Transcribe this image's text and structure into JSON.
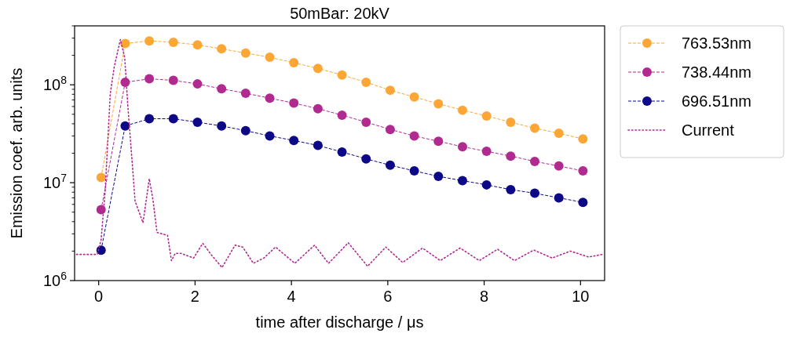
{
  "chart_data": {
    "type": "line",
    "title": "50mBar: 20kV",
    "xlabel": "time after discharge / μs",
    "ylabel": "Emission coef. arb. units",
    "log": "y",
    "xlim": [
      -0.5,
      10.5
    ],
    "xticks": [
      0,
      2,
      4,
      6,
      8,
      10
    ],
    "ylim": [
      1000000,
      400000000
    ],
    "yticks": [
      {
        "value": 1000000,
        "label": "10$^{6}$"
      },
      {
        "value": 2000000,
        "label": null
      },
      {
        "value": 3000000,
        "label": null
      },
      {
        "value": 4000000,
        "label": null
      },
      {
        "value": 5000000,
        "label": null
      },
      {
        "value": 6000000,
        "label": null
      },
      {
        "value": 7000000,
        "label": null
      },
      {
        "value": 8000000,
        "label": null
      },
      {
        "value": 9000000,
        "label": null
      },
      {
        "value": 10000000,
        "label": "10$^{7}$"
      },
      {
        "value": 20000000,
        "label": null
      },
      {
        "value": 30000000,
        "label": null
      },
      {
        "value": 40000000,
        "label": null
      },
      {
        "value": 50000000,
        "label": null
      },
      {
        "value": 60000000,
        "label": null
      },
      {
        "value": 70000000,
        "label": null
      },
      {
        "value": 80000000,
        "label": null
      },
      {
        "value": 90000000,
        "label": null
      },
      {
        "value": 100000000,
        "label": "10$^{8}$"
      },
      {
        "value": 200000000,
        "label": null
      },
      {
        "value": 300000000,
        "label": null
      },
      {
        "value": 400000000,
        "label": null
      }
    ],
    "grid": false,
    "legend": "top right",
    "marker": "circle",
    "line_style": "dashed",
    "x": [
      0.05,
      0.55,
      1.05,
      1.55,
      2.05,
      2.55,
      3.05,
      3.55,
      4.05,
      4.55,
      5.05,
      5.55,
      6.05,
      6.55,
      7.05,
      7.55,
      8.05,
      8.55,
      9.05,
      9.55,
      10.05
    ],
    "series": [
      {
        "name": "763.53nm",
        "color": "#fca636",
        "values": [
          11300000,
          264000000,
          281000000,
          272000000,
          256000000,
          233000000,
          211000000,
          191000000,
          168000000,
          147000000,
          126000000,
          106000000,
          88000000,
          75000000,
          64000000,
          55000000,
          48000000,
          41500000,
          36000000,
          32000000,
          28000000
        ]
      },
      {
        "name": "738.44nm",
        "color": "#b12a90",
        "values": [
          5300000,
          106000000,
          115000000,
          111000000,
          102000000,
          91000000,
          82000000,
          73000000,
          65000000,
          57000000,
          49000000,
          41500000,
          35000000,
          30000000,
          26500000,
          23300000,
          20900000,
          18700000,
          16500000,
          14800000,
          13200000
        ]
      },
      {
        "name": "696.51nm",
        "color": "#0d0887",
        "values": [
          2040000,
          38000000,
          45000000,
          45000000,
          41500000,
          38000000,
          34000000,
          30000000,
          27000000,
          24000000,
          20600000,
          17500000,
          15100000,
          13200000,
          11600000,
          10500000,
          9500000,
          8500000,
          7800000,
          7000000,
          6300000
        ]
      },
      {
        "name": "Current",
        "color": "#b12a90",
        "marker": "none",
        "line_style": "dotted",
        "x": [
          -0.46,
          -0.03,
          0.05,
          0.135,
          0.24,
          0.32,
          0.45,
          0.54,
          0.61,
          0.7,
          0.755,
          0.92,
          1.05,
          1.13,
          1.21,
          1.43,
          1.51,
          1.59,
          1.7,
          1.83,
          1.97,
          2.16,
          2.35,
          2.56,
          2.83,
          2.99,
          3.21,
          3.43,
          3.67,
          4.07,
          4.48,
          4.77,
          5.18,
          5.58,
          5.96,
          6.31,
          6.72,
          7.09,
          7.5,
          7.9,
          8.28,
          8.63,
          9.03,
          9.41,
          9.79,
          10.17,
          10.45
        ],
        "values": [
          1850000,
          1850000,
          2600000,
          8300000,
          81000000,
          150000000,
          290000000,
          190000000,
          56000000,
          15000000,
          6500000,
          3900000,
          11000000,
          6500000,
          3100000,
          2900000,
          1600000,
          1900000,
          1900000,
          1800000,
          1700000,
          2400000,
          1800000,
          1360000,
          2300000,
          2200000,
          1500000,
          1700000,
          2200000,
          1500000,
          2300000,
          1500000,
          2430000,
          1400000,
          2200000,
          1530000,
          2150000,
          1600000,
          2150000,
          1600000,
          2090000,
          1600000,
          2050000,
          1700000,
          2000000,
          1740000,
          1850000
        ]
      }
    ]
  }
}
